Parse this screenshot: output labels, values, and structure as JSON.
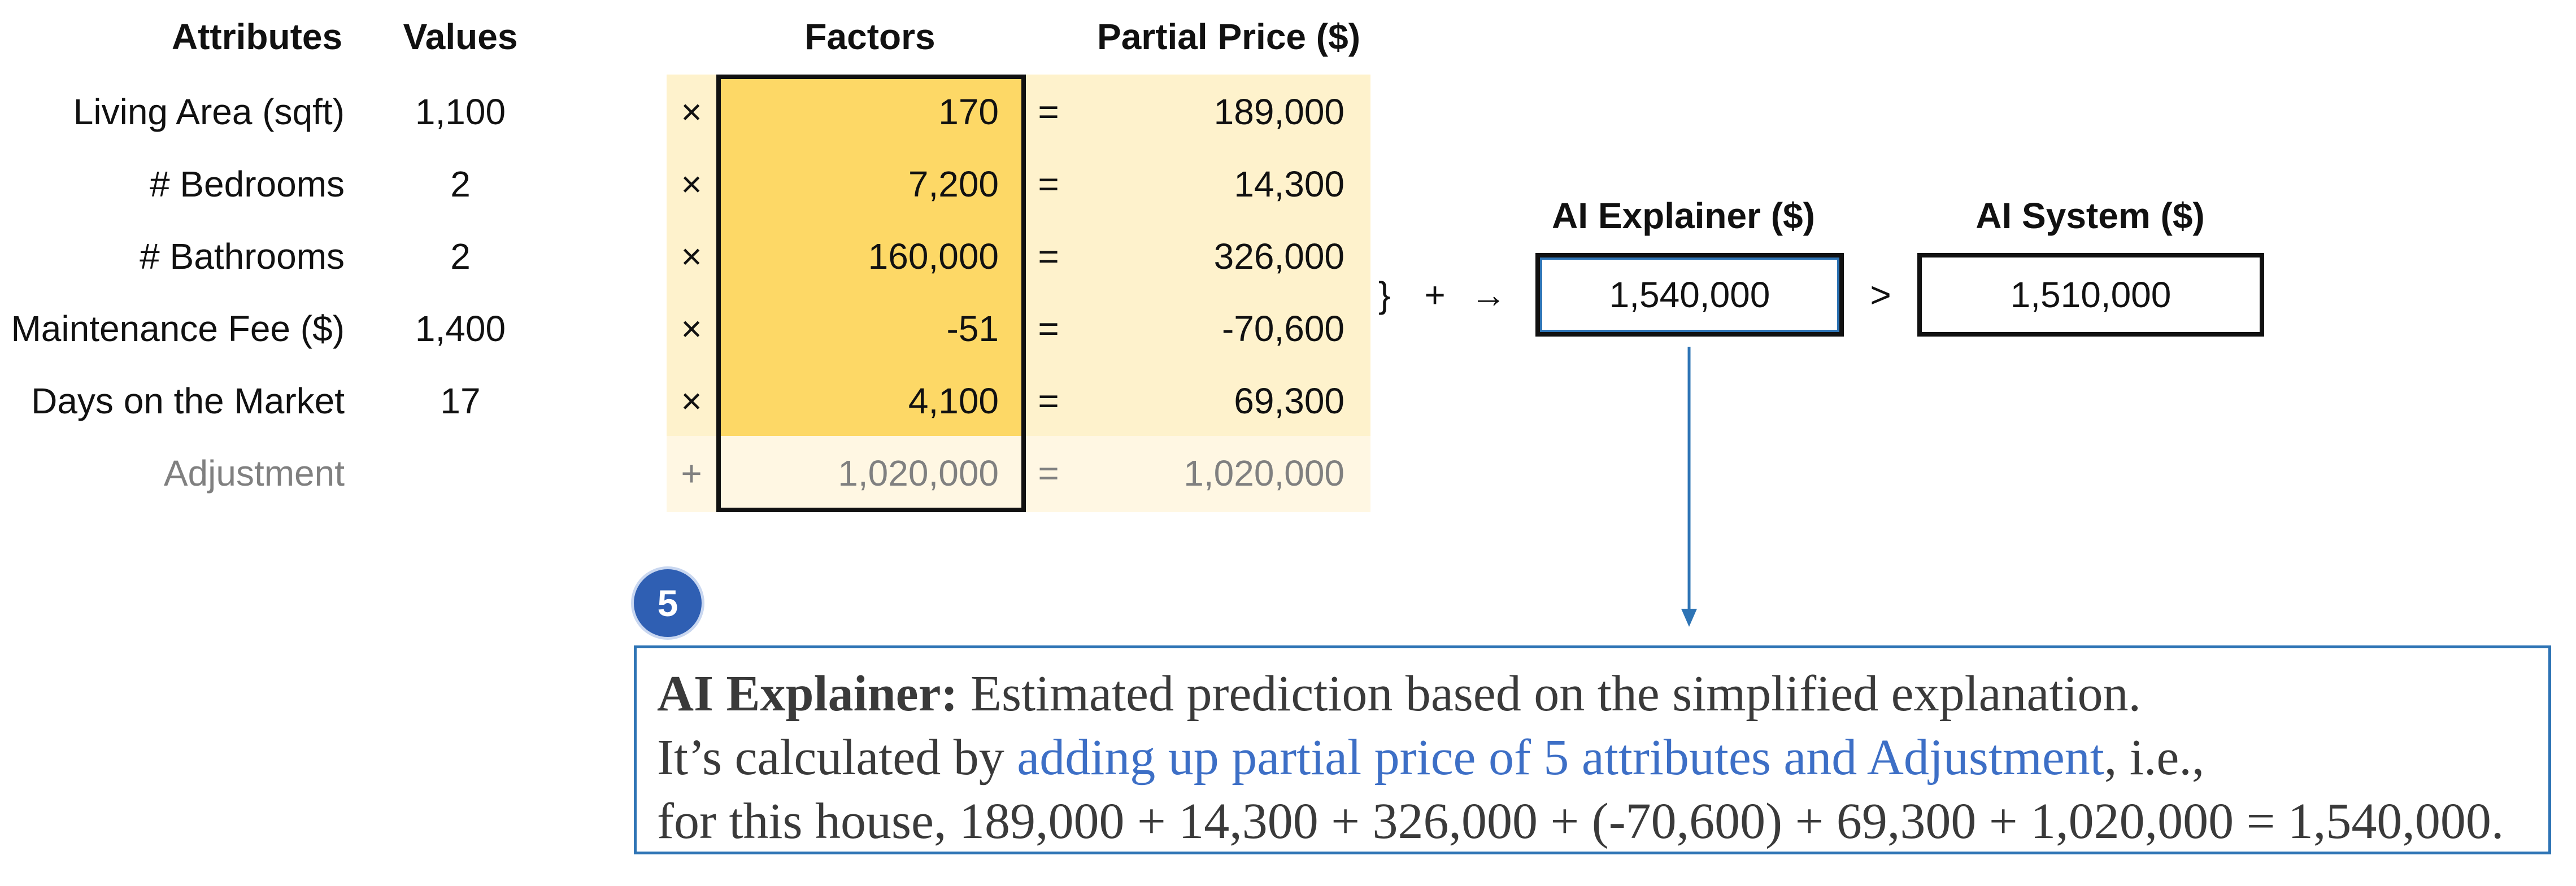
{
  "headers": {
    "attributes": "Attributes",
    "values": "Values",
    "factors": "Factors",
    "partial_price": "Partial Price ($)",
    "ai_explainer": "AI Explainer ($)",
    "ai_system": "AI System ($)"
  },
  "rows": [
    {
      "attribute": "Living Area (sqft)",
      "value": "1,100",
      "op": "×",
      "factor": "170",
      "eq": "=",
      "partial": "189,000"
    },
    {
      "attribute": "# Bedrooms",
      "value": "2",
      "op": "×",
      "factor": "7,200",
      "eq": "=",
      "partial": "14,300"
    },
    {
      "attribute": "# Bathrooms",
      "value": "2",
      "op": "×",
      "factor": "160,000",
      "eq": "=",
      "partial": "326,000"
    },
    {
      "attribute": "Maintenance Fee ($)",
      "value": "1,400",
      "op": "×",
      "factor": "-51",
      "eq": "=",
      "partial": "-70,600"
    },
    {
      "attribute": "Days on the Market",
      "value": "17",
      "op": "×",
      "factor": "4,100",
      "eq": "=",
      "partial": "69,300"
    },
    {
      "attribute": "Adjustment",
      "value": "",
      "op": "+",
      "factor": "1,020,000",
      "eq": "=",
      "partial": "1,020,000"
    }
  ],
  "summation": {
    "brace": "}",
    "plus": "+",
    "arrow": "→"
  },
  "ai_explainer_value": "1,540,000",
  "comparison": ">",
  "ai_system_value": "1,510,000",
  "step_badge": "5",
  "explanation": {
    "title": "AI Explainer:",
    "line1_rest": "Estimated prediction based on the simplified explanation.",
    "line2_start": "It’s calculated by ",
    "line2_highlight": "adding up partial price of 5 attributes and Adjustment",
    "line2_end": ", i.e.,",
    "line3": "for this house, 189,000 + 14,300 + 326,000 + (-70,600) + 69,300 + 1,020,000 = 1,540,000."
  },
  "colors": {
    "factor_fill": "#FDD866",
    "partial_fill": "#FEF2CC",
    "adjustment_fill": "#FFF7E3",
    "accent_blue": "#2E74B5",
    "highlight_text": "#3D6FC6"
  }
}
